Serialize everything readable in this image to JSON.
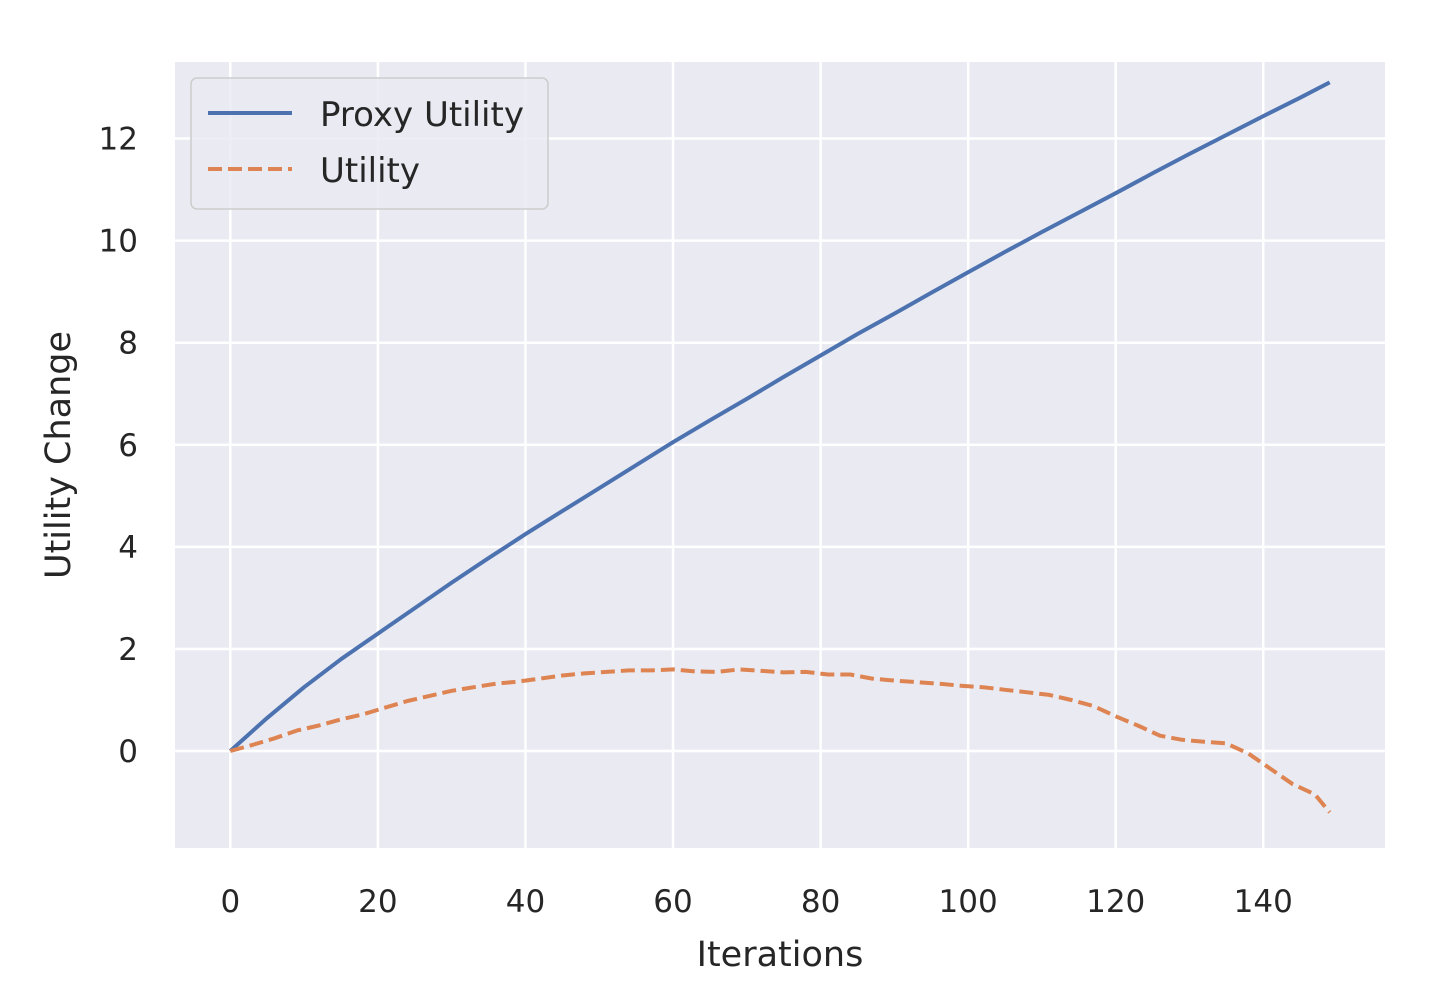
{
  "chart_data": {
    "type": "line",
    "xlabel": "Iterations",
    "ylabel": "Utility Change",
    "xlim": [
      -7.5,
      156.5
    ],
    "ylim": [
      -1.9,
      13.5
    ],
    "xticks": [
      0,
      20,
      40,
      60,
      80,
      100,
      120,
      140
    ],
    "yticks": [
      0,
      2,
      4,
      6,
      8,
      10,
      12
    ],
    "grid": true,
    "legend_position": "top-left",
    "background_color": "#eaeaf2",
    "series": [
      {
        "name": "Proxy Utility",
        "color": "#4c72b0",
        "style": "solid",
        "x": [
          0,
          5,
          10,
          15,
          20,
          25,
          30,
          35,
          40,
          45,
          50,
          55,
          60,
          65,
          70,
          75,
          80,
          85,
          90,
          95,
          100,
          105,
          110,
          115,
          120,
          125,
          130,
          135,
          140,
          145,
          149
        ],
        "y": [
          0.0,
          0.65,
          1.25,
          1.8,
          2.3,
          2.8,
          3.3,
          3.78,
          4.25,
          4.7,
          5.15,
          5.6,
          6.05,
          6.48,
          6.9,
          7.33,
          7.75,
          8.17,
          8.57,
          8.98,
          9.38,
          9.78,
          10.17,
          10.55,
          10.93,
          11.32,
          11.7,
          12.07,
          12.44,
          12.8,
          13.1
        ]
      },
      {
        "name": "Utility",
        "color": "#dd8452",
        "style": "dashed",
        "x": [
          0,
          3,
          6,
          9,
          12,
          15,
          18,
          21,
          24,
          27,
          30,
          33,
          36,
          39,
          42,
          45,
          48,
          51,
          54,
          57,
          60,
          63,
          66,
          69,
          72,
          75,
          78,
          81,
          84,
          87,
          90,
          93,
          96,
          99,
          102,
          105,
          108,
          111,
          114,
          117,
          120,
          123,
          126,
          129,
          132,
          135,
          138,
          141,
          144,
          147,
          149
        ],
        "y": [
          0.0,
          0.12,
          0.25,
          0.4,
          0.5,
          0.62,
          0.72,
          0.85,
          0.98,
          1.08,
          1.18,
          1.25,
          1.32,
          1.36,
          1.42,
          1.48,
          1.52,
          1.55,
          1.58,
          1.58,
          1.6,
          1.56,
          1.55,
          1.6,
          1.57,
          1.54,
          1.55,
          1.5,
          1.5,
          1.42,
          1.38,
          1.35,
          1.32,
          1.28,
          1.25,
          1.2,
          1.15,
          1.1,
          1.0,
          0.88,
          0.68,
          0.5,
          0.3,
          0.22,
          0.18,
          0.15,
          -0.05,
          -0.35,
          -0.65,
          -0.85,
          -1.2
        ]
      }
    ]
  }
}
